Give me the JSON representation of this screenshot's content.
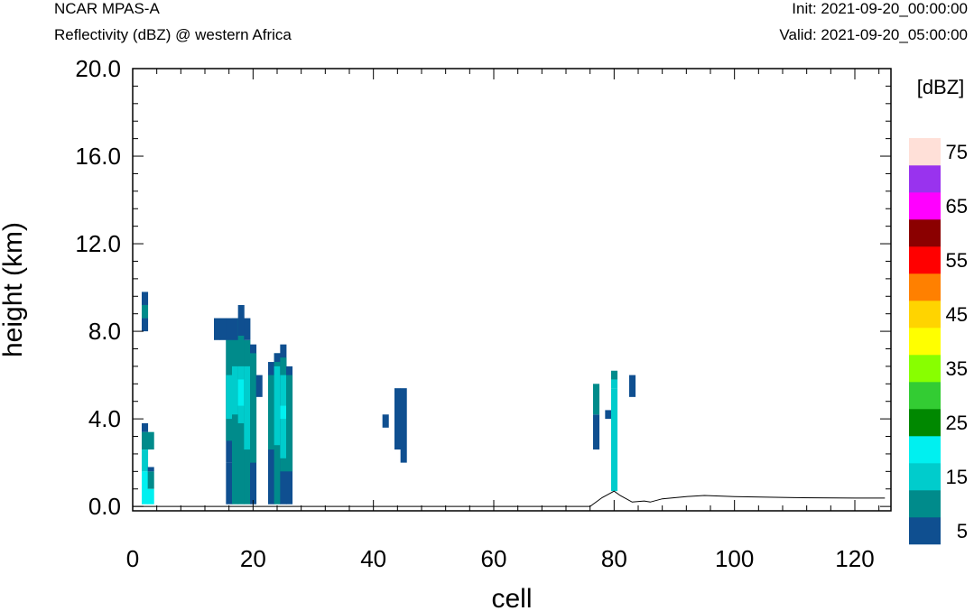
{
  "header": {
    "model": "NCAR MPAS-A",
    "subtitle": "Reflectivity (dBZ) @ western Africa",
    "init": "Init: 2021-09-20_00:00:00",
    "valid": "Valid: 2021-09-20_05:00:00"
  },
  "chart_data": {
    "type": "heatmap",
    "title": "Reflectivity (dBZ) @ western Africa",
    "xlabel": "cell",
    "ylabel": "height (km)",
    "xlim": [
      0,
      126
    ],
    "ylim": [
      -0.2,
      20.0
    ],
    "x_ticks": [
      0,
      20,
      40,
      60,
      80,
      100,
      120
    ],
    "x_tick_labels": [
      "0",
      "20",
      "40",
      "60",
      "80",
      "100",
      "120"
    ],
    "y_ticks": [
      0,
      4,
      8,
      12,
      16,
      20
    ],
    "y_tick_labels": [
      "0.0",
      "4.0",
      "8.0",
      "12.0",
      "16.0",
      "20.0"
    ],
    "colorbar": {
      "title": "[dBZ]",
      "levels": [
        5,
        10,
        15,
        20,
        25,
        30,
        35,
        40,
        45,
        50,
        55,
        60,
        65,
        70,
        75
      ],
      "labels": [
        "5",
        "15",
        "25",
        "35",
        "45",
        "55",
        "65",
        "75"
      ],
      "colors": [
        "#0f4f90",
        "#008b8b",
        "#00cccc",
        "#00f0f0",
        "#008800",
        "#33cc33",
        "#88ff00",
        "#ffff00",
        "#ffd400",
        "#ff8000",
        "#ff0000",
        "#8b0000",
        "#ff00ff",
        "#9933ee",
        "#ffe0d8"
      ]
    },
    "cells": [
      [
        2,
        8.0,
        8.6,
        5
      ],
      [
        2,
        8.6,
        9.2,
        10
      ],
      [
        2,
        9.2,
        9.8,
        5
      ],
      [
        2,
        2.6,
        3.4,
        10
      ],
      [
        2,
        3.4,
        3.8,
        5
      ],
      [
        2,
        1.6,
        2.6,
        15
      ],
      [
        2,
        0.1,
        1.6,
        20
      ],
      [
        3,
        2.6,
        3.4,
        10
      ],
      [
        3,
        0.8,
        1.6,
        10
      ],
      [
        3,
        1.6,
        1.8,
        5
      ],
      [
        3,
        0.1,
        0.8,
        20
      ],
      [
        14,
        7.6,
        8.6,
        5
      ],
      [
        15,
        7.6,
        8.6,
        5
      ],
      [
        16,
        2.0,
        8.6,
        5
      ],
      [
        16,
        0.1,
        2.0,
        5
      ],
      [
        16,
        3.0,
        7.6,
        10
      ],
      [
        16,
        4.0,
        6.0,
        15
      ],
      [
        17,
        0.1,
        8.6,
        10
      ],
      [
        17,
        4.2,
        6.4,
        15
      ],
      [
        17,
        7.6,
        8.6,
        5
      ],
      [
        18,
        0.1,
        8.6,
        10
      ],
      [
        18,
        3.8,
        6.4,
        15
      ],
      [
        18,
        4.6,
        5.8,
        20
      ],
      [
        18,
        7.8,
        9.2,
        5
      ],
      [
        19,
        0.1,
        7.6,
        10
      ],
      [
        19,
        2.6,
        6.4,
        15
      ],
      [
        19,
        7.6,
        8.6,
        5
      ],
      [
        20,
        0.1,
        7.4,
        5
      ],
      [
        20,
        2.0,
        7.0,
        10
      ],
      [
        21,
        5.0,
        6.0,
        5
      ],
      [
        23,
        0.1,
        6.6,
        5
      ],
      [
        23,
        2.6,
        6.0,
        10
      ],
      [
        24,
        0.1,
        7.0,
        10
      ],
      [
        24,
        2.8,
        6.4,
        15
      ],
      [
        24,
        6.6,
        7.0,
        5
      ],
      [
        25,
        0.1,
        7.4,
        5
      ],
      [
        25,
        1.6,
        6.8,
        10
      ],
      [
        25,
        2.2,
        6.0,
        15
      ],
      [
        25,
        4.0,
        4.6,
        20
      ],
      [
        26,
        0.1,
        6.4,
        5
      ],
      [
        26,
        1.6,
        6.0,
        10
      ],
      [
        42,
        3.6,
        4.2,
        5
      ],
      [
        44,
        2.6,
        5.4,
        5
      ],
      [
        45,
        2.0,
        5.4,
        5
      ],
      [
        77,
        2.6,
        4.2,
        5
      ],
      [
        77,
        4.2,
        5.6,
        10
      ],
      [
        79,
        4.0,
        4.4,
        5
      ],
      [
        80,
        0.7,
        5.4,
        15
      ],
      [
        80,
        5.4,
        5.8,
        15
      ],
      [
        80,
        5.8,
        6.2,
        10
      ],
      [
        83,
        5.0,
        6.0,
        5
      ]
    ],
    "terrain": [
      [
        0,
        0.0
      ],
      [
        76,
        0.0
      ],
      [
        78,
        0.4
      ],
      [
        80,
        0.7
      ],
      [
        81,
        0.5
      ],
      [
        83,
        0.2
      ],
      [
        85,
        0.25
      ],
      [
        86,
        0.2
      ],
      [
        88,
        0.35
      ],
      [
        92,
        0.45
      ],
      [
        95,
        0.5
      ],
      [
        100,
        0.45
      ],
      [
        110,
        0.4
      ],
      [
        120,
        0.38
      ],
      [
        125,
        0.38
      ]
    ]
  }
}
